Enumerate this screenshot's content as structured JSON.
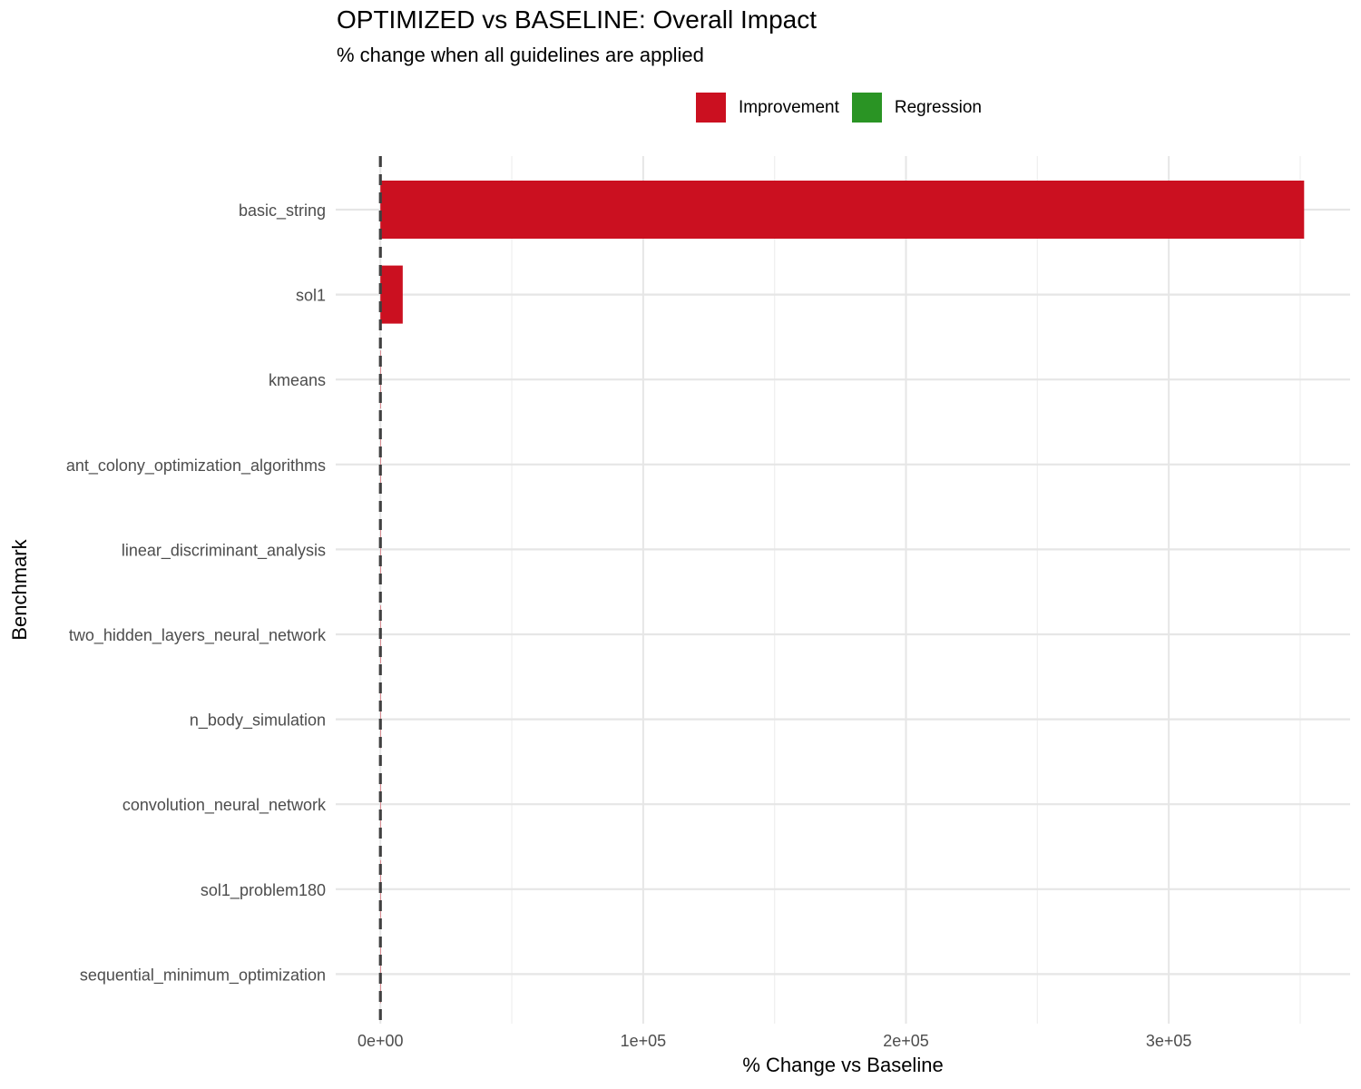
{
  "chart_data": {
    "type": "bar",
    "orientation": "horizontal",
    "title": "OPTIMIZED vs BASELINE: Overall Impact",
    "subtitle": "% change when all guidelines are applied",
    "xlabel": "% Change vs Baseline",
    "ylabel": "Benchmark",
    "categories": [
      "basic_string",
      "sol1",
      "kmeans",
      "ant_colony_optimization_algorithms",
      "linear_discriminant_analysis",
      "two_hidden_layers_neural_network",
      "n_body_simulation",
      "convolution_neural_network",
      "sol1_problem180",
      "sequential_minimum_optimization"
    ],
    "values": [
      351500,
      8500,
      60,
      30,
      20,
      10,
      5,
      3,
      2,
      1
    ],
    "status": [
      "Improvement",
      "Improvement",
      "Improvement",
      "Improvement",
      "Improvement",
      "Improvement",
      "Improvement",
      "Improvement",
      "Improvement",
      "Improvement"
    ],
    "xlim": [
      -17000,
      369000
    ],
    "xticks": [
      0,
      100000,
      200000,
      300000
    ],
    "xtick_labels": [
      "0e+00",
      "1e+05",
      "2e+05",
      "3e+05"
    ],
    "reference_line": 0,
    "grid": true,
    "legend": {
      "position": "top",
      "entries": [
        {
          "label": "Improvement",
          "color": "#cb1020"
        },
        {
          "label": "Regression",
          "color": "#2a9424"
        }
      ]
    }
  }
}
